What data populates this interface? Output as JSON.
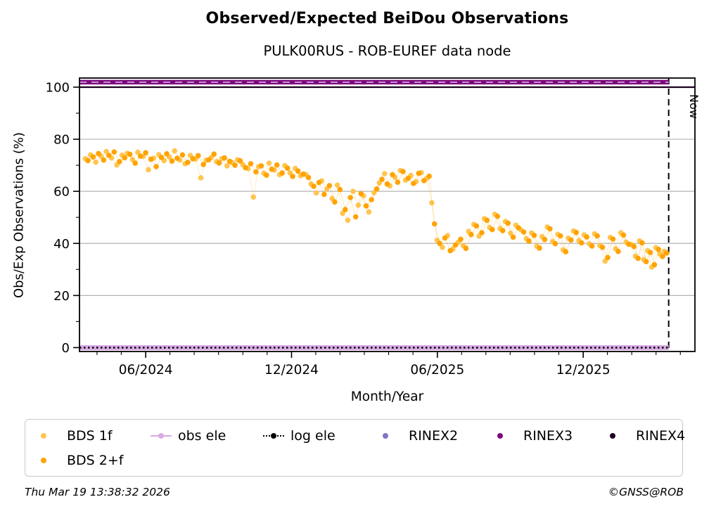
{
  "title": "Observed/Expected BeiDou Observations",
  "subtitle": "PULK00RUS - ROB-EUREF data node",
  "footer": {
    "timestamp": "Thu Mar 19 13:38:32 2026",
    "credit": "©GNSS@ROB"
  },
  "colors": {
    "bds1f": "#FFC54F",
    "bds2f": "#FFA300",
    "obs_ele": "#D8A9E3",
    "log_ele": "#000000",
    "rinex2": "#8273C5",
    "rinex3": "#7D0A7D",
    "rinex4": "#1C0120",
    "grid": "#b3b3b3",
    "frame": "#000000",
    "rinex2_dash_on_band": "#CB9BDB"
  },
  "legend": {
    "items": [
      {
        "label": "BDS 1f",
        "color": "#FFC54F",
        "marker": "dot"
      },
      {
        "label": "obs ele",
        "color": "#D8A9E3",
        "marker": "line-dot"
      },
      {
        "label": "log ele",
        "color": "#000000",
        "marker": "dotted-line-dot"
      },
      {
        "label": "RINEX2",
        "color": "#8273C5",
        "marker": "dot"
      },
      {
        "label": "RINEX3",
        "color": "#7D0A7D",
        "marker": "dot"
      },
      {
        "label": "RINEX4",
        "color": "#1C0120",
        "marker": "dot"
      },
      {
        "label": "BDS 2+f",
        "color": "#FFA300",
        "marker": "dot"
      }
    ]
  },
  "chart_data": {
    "type": "scatter",
    "title": "Observed/Expected BeiDou Observations",
    "subtitle": "PULK00RUS - ROB-EUREF data node",
    "xlabel": "Month/Year",
    "ylabel": "Obs/Exp Observations (%)",
    "xlim": [
      2024.19,
      2026.3
    ],
    "ylim": [
      -1.5,
      103.5
    ],
    "grid": true,
    "legend_position": "bottom",
    "x_ticks": [
      {
        "value": 2024.417,
        "label": "06/2024"
      },
      {
        "value": 2024.917,
        "label": "12/2024"
      },
      {
        "value": 2025.417,
        "label": "06/2025"
      },
      {
        "value": 2025.917,
        "label": "12/2025"
      }
    ],
    "y_ticks": [
      {
        "value": 0,
        "label": "0"
      },
      {
        "value": 20,
        "label": "20"
      },
      {
        "value": 40,
        "label": "40"
      },
      {
        "value": 60,
        "label": "60"
      },
      {
        "value": 80,
        "label": "80"
      },
      {
        "value": 100,
        "label": "100"
      }
    ],
    "now_line": {
      "x": 2026.21,
      "label": "Now"
    },
    "reference_lines": [
      {
        "name": "RINEX3",
        "y": 101.9,
        "color": "#7D0A7D",
        "width": 6.5,
        "style": "solid",
        "x_end": 2026.21
      },
      {
        "name": "RINEX2",
        "y": 101.9,
        "color": "#CB9BDB",
        "width": 1.8,
        "style": "dashed",
        "x_end": 2026.21
      },
      {
        "name": "RINEX4",
        "y": 100.0,
        "color": "#1C0120",
        "width": 2.2,
        "style": "solid",
        "x_end": 2026.3
      },
      {
        "name": "obs ele",
        "y": 0.0,
        "color": "#D8A9E3",
        "width": 7,
        "style": "solid",
        "x_end": 2026.21
      },
      {
        "name": "log ele",
        "y": 0.0,
        "color": "#000000",
        "width": 2.5,
        "style": "dotted",
        "x_end": 2026.21
      }
    ],
    "series": [
      {
        "name": "BDS 1f",
        "color": "#FFC54F",
        "points": [
          [
            2024.21,
            72.5
          ],
          [
            2024.228,
            74.0
          ],
          [
            2024.246,
            71.2
          ],
          [
            2024.264,
            73.5
          ],
          [
            2024.282,
            75.3
          ],
          [
            2024.3,
            72.8
          ],
          [
            2024.318,
            70.1
          ],
          [
            2024.336,
            73.9
          ],
          [
            2024.354,
            74.6
          ],
          [
            2024.372,
            72.2
          ],
          [
            2024.39,
            75.0
          ],
          [
            2024.408,
            73.4
          ],
          [
            2024.426,
            68.3
          ],
          [
            2024.444,
            72.7
          ],
          [
            2024.462,
            74.1
          ],
          [
            2024.48,
            71.8
          ],
          [
            2024.498,
            73.2
          ],
          [
            2024.516,
            75.5
          ],
          [
            2024.534,
            72.0
          ],
          [
            2024.552,
            70.6
          ],
          [
            2024.57,
            73.8
          ],
          [
            2024.588,
            72.4
          ],
          [
            2024.606,
            65.2
          ],
          [
            2024.624,
            71.9
          ],
          [
            2024.642,
            73.0
          ],
          [
            2024.66,
            71.4
          ],
          [
            2024.678,
            72.6
          ],
          [
            2024.696,
            69.8
          ],
          [
            2024.714,
            71.0
          ],
          [
            2024.732,
            72.1
          ],
          [
            2024.75,
            70.3
          ],
          [
            2024.768,
            68.7
          ],
          [
            2024.786,
            57.8
          ],
          [
            2024.804,
            69.5
          ],
          [
            2024.822,
            66.9
          ],
          [
            2024.84,
            70.8
          ],
          [
            2024.858,
            68.2
          ],
          [
            2024.876,
            66.4
          ],
          [
            2024.894,
            69.9
          ],
          [
            2024.912,
            67.1
          ],
          [
            2024.93,
            68.8
          ],
          [
            2024.948,
            66.0
          ],
          [
            2024.966,
            66.5
          ],
          [
            2024.984,
            62.8
          ],
          [
            2025.002,
            59.4
          ],
          [
            2025.02,
            64.0
          ],
          [
            2025.038,
            60.9
          ],
          [
            2025.056,
            57.2
          ],
          [
            2025.074,
            62.4
          ],
          [
            2025.092,
            51.6
          ],
          [
            2025.11,
            48.9
          ],
          [
            2025.128,
            60.0
          ],
          [
            2025.146,
            54.7
          ],
          [
            2025.164,
            58.3
          ],
          [
            2025.182,
            52.1
          ],
          [
            2025.2,
            59.5
          ],
          [
            2025.218,
            63.2
          ],
          [
            2025.236,
            66.8
          ],
          [
            2025.254,
            62.1
          ],
          [
            2025.272,
            65.4
          ],
          [
            2025.29,
            68.0
          ],
          [
            2025.308,
            64.3
          ],
          [
            2025.326,
            66.1
          ],
          [
            2025.344,
            63.7
          ],
          [
            2025.362,
            67.2
          ],
          [
            2025.38,
            64.9
          ],
          [
            2025.398,
            55.6
          ],
          [
            2025.416,
            41.2
          ],
          [
            2025.434,
            38.5
          ],
          [
            2025.452,
            43.0
          ],
          [
            2025.47,
            37.8
          ],
          [
            2025.488,
            40.4
          ],
          [
            2025.506,
            39.1
          ],
          [
            2025.524,
            44.6
          ],
          [
            2025.542,
            47.3
          ],
          [
            2025.56,
            42.8
          ],
          [
            2025.578,
            49.5
          ],
          [
            2025.596,
            46.1
          ],
          [
            2025.614,
            51.2
          ],
          [
            2025.632,
            45.7
          ],
          [
            2025.65,
            48.4
          ],
          [
            2025.668,
            43.9
          ],
          [
            2025.686,
            47.0
          ],
          [
            2025.704,
            45.2
          ],
          [
            2025.722,
            41.8
          ],
          [
            2025.74,
            44.0
          ],
          [
            2025.758,
            38.9
          ],
          [
            2025.776,
            42.6
          ],
          [
            2025.794,
            46.3
          ],
          [
            2025.812,
            40.7
          ],
          [
            2025.83,
            43.5
          ],
          [
            2025.848,
            37.5
          ],
          [
            2025.866,
            42.0
          ],
          [
            2025.884,
            44.8
          ],
          [
            2025.902,
            41.1
          ],
          [
            2025.92,
            43.3
          ],
          [
            2025.938,
            39.8
          ],
          [
            2025.956,
            43.7
          ],
          [
            2025.974,
            39.2
          ],
          [
            2025.992,
            33.2
          ],
          [
            2026.01,
            42.3
          ],
          [
            2026.028,
            37.9
          ],
          [
            2026.046,
            44.1
          ],
          [
            2026.064,
            40.5
          ],
          [
            2026.082,
            39.6
          ],
          [
            2026.096,
            35.1
          ],
          [
            2026.11,
            41.0
          ],
          [
            2026.124,
            33.8
          ],
          [
            2026.138,
            37.2
          ],
          [
            2026.152,
            30.9
          ],
          [
            2026.166,
            38.4
          ],
          [
            2026.18,
            35.9
          ],
          [
            2026.195,
            37.0
          ]
        ]
      },
      {
        "name": "BDS 2+f",
        "color": "#FFA300",
        "points": [
          [
            2024.219,
            71.8
          ],
          [
            2024.237,
            73.2
          ],
          [
            2024.255,
            74.5
          ],
          [
            2024.273,
            72.0
          ],
          [
            2024.291,
            73.8
          ],
          [
            2024.309,
            75.1
          ],
          [
            2024.327,
            71.4
          ],
          [
            2024.345,
            72.9
          ],
          [
            2024.363,
            74.2
          ],
          [
            2024.381,
            70.8
          ],
          [
            2024.399,
            73.5
          ],
          [
            2024.417,
            74.8
          ],
          [
            2024.435,
            72.3
          ],
          [
            2024.453,
            69.5
          ],
          [
            2024.471,
            73.0
          ],
          [
            2024.489,
            74.4
          ],
          [
            2024.507,
            71.6
          ],
          [
            2024.525,
            72.7
          ],
          [
            2024.543,
            74.0
          ],
          [
            2024.561,
            71.1
          ],
          [
            2024.579,
            72.5
          ],
          [
            2024.597,
            73.7
          ],
          [
            2024.615,
            70.3
          ],
          [
            2024.633,
            72.1
          ],
          [
            2024.651,
            74.3
          ],
          [
            2024.669,
            70.9
          ],
          [
            2024.687,
            72.8
          ],
          [
            2024.705,
            71.5
          ],
          [
            2024.723,
            70.0
          ],
          [
            2024.741,
            71.7
          ],
          [
            2024.759,
            69.1
          ],
          [
            2024.777,
            70.6
          ],
          [
            2024.795,
            67.5
          ],
          [
            2024.813,
            69.8
          ],
          [
            2024.831,
            66.2
          ],
          [
            2024.849,
            68.5
          ],
          [
            2024.867,
            70.1
          ],
          [
            2024.885,
            67.0
          ],
          [
            2024.903,
            68.9
          ],
          [
            2024.921,
            65.7
          ],
          [
            2024.939,
            67.8
          ],
          [
            2024.957,
            66.6
          ],
          [
            2024.975,
            65.3
          ],
          [
            2024.993,
            61.9
          ],
          [
            2025.011,
            63.4
          ],
          [
            2025.029,
            58.8
          ],
          [
            2025.047,
            62.2
          ],
          [
            2025.065,
            55.9
          ],
          [
            2025.083,
            60.7
          ],
          [
            2025.101,
            53.0
          ],
          [
            2025.119,
            57.6
          ],
          [
            2025.137,
            50.2
          ],
          [
            2025.155,
            59.1
          ],
          [
            2025.173,
            54.4
          ],
          [
            2025.191,
            56.8
          ],
          [
            2025.209,
            60.9
          ],
          [
            2025.227,
            64.6
          ],
          [
            2025.245,
            62.8
          ],
          [
            2025.263,
            66.4
          ],
          [
            2025.281,
            63.5
          ],
          [
            2025.299,
            67.6
          ],
          [
            2025.317,
            65.0
          ],
          [
            2025.335,
            63.0
          ],
          [
            2025.353,
            66.9
          ],
          [
            2025.371,
            64.1
          ],
          [
            2025.389,
            65.8
          ],
          [
            2025.407,
            47.5
          ],
          [
            2025.425,
            40.0
          ],
          [
            2025.443,
            42.1
          ],
          [
            2025.461,
            37.2
          ],
          [
            2025.479,
            39.4
          ],
          [
            2025.497,
            41.6
          ],
          [
            2025.515,
            38.1
          ],
          [
            2025.533,
            43.4
          ],
          [
            2025.551,
            46.7
          ],
          [
            2025.569,
            44.1
          ],
          [
            2025.587,
            48.9
          ],
          [
            2025.605,
            45.3
          ],
          [
            2025.623,
            50.4
          ],
          [
            2025.641,
            44.9
          ],
          [
            2025.659,
            47.8
          ],
          [
            2025.677,
            42.4
          ],
          [
            2025.695,
            46.0
          ],
          [
            2025.713,
            44.4
          ],
          [
            2025.731,
            40.9
          ],
          [
            2025.749,
            43.1
          ],
          [
            2025.767,
            38.2
          ],
          [
            2025.785,
            41.5
          ],
          [
            2025.803,
            45.6
          ],
          [
            2025.821,
            39.9
          ],
          [
            2025.839,
            42.9
          ],
          [
            2025.857,
            36.8
          ],
          [
            2025.875,
            41.3
          ],
          [
            2025.893,
            44.2
          ],
          [
            2025.911,
            40.2
          ],
          [
            2025.929,
            42.5
          ],
          [
            2025.947,
            39.0
          ],
          [
            2025.965,
            42.9
          ],
          [
            2025.983,
            38.5
          ],
          [
            2026.001,
            34.6
          ],
          [
            2026.019,
            41.7
          ],
          [
            2026.037,
            36.9
          ],
          [
            2026.055,
            43.2
          ],
          [
            2026.073,
            39.7
          ],
          [
            2026.091,
            38.8
          ],
          [
            2026.105,
            34.3
          ],
          [
            2026.119,
            40.2
          ],
          [
            2026.133,
            33.0
          ],
          [
            2026.147,
            36.5
          ],
          [
            2026.161,
            31.8
          ],
          [
            2026.175,
            37.7
          ],
          [
            2026.189,
            35.0
          ],
          [
            2026.203,
            36.3
          ]
        ]
      }
    ]
  }
}
